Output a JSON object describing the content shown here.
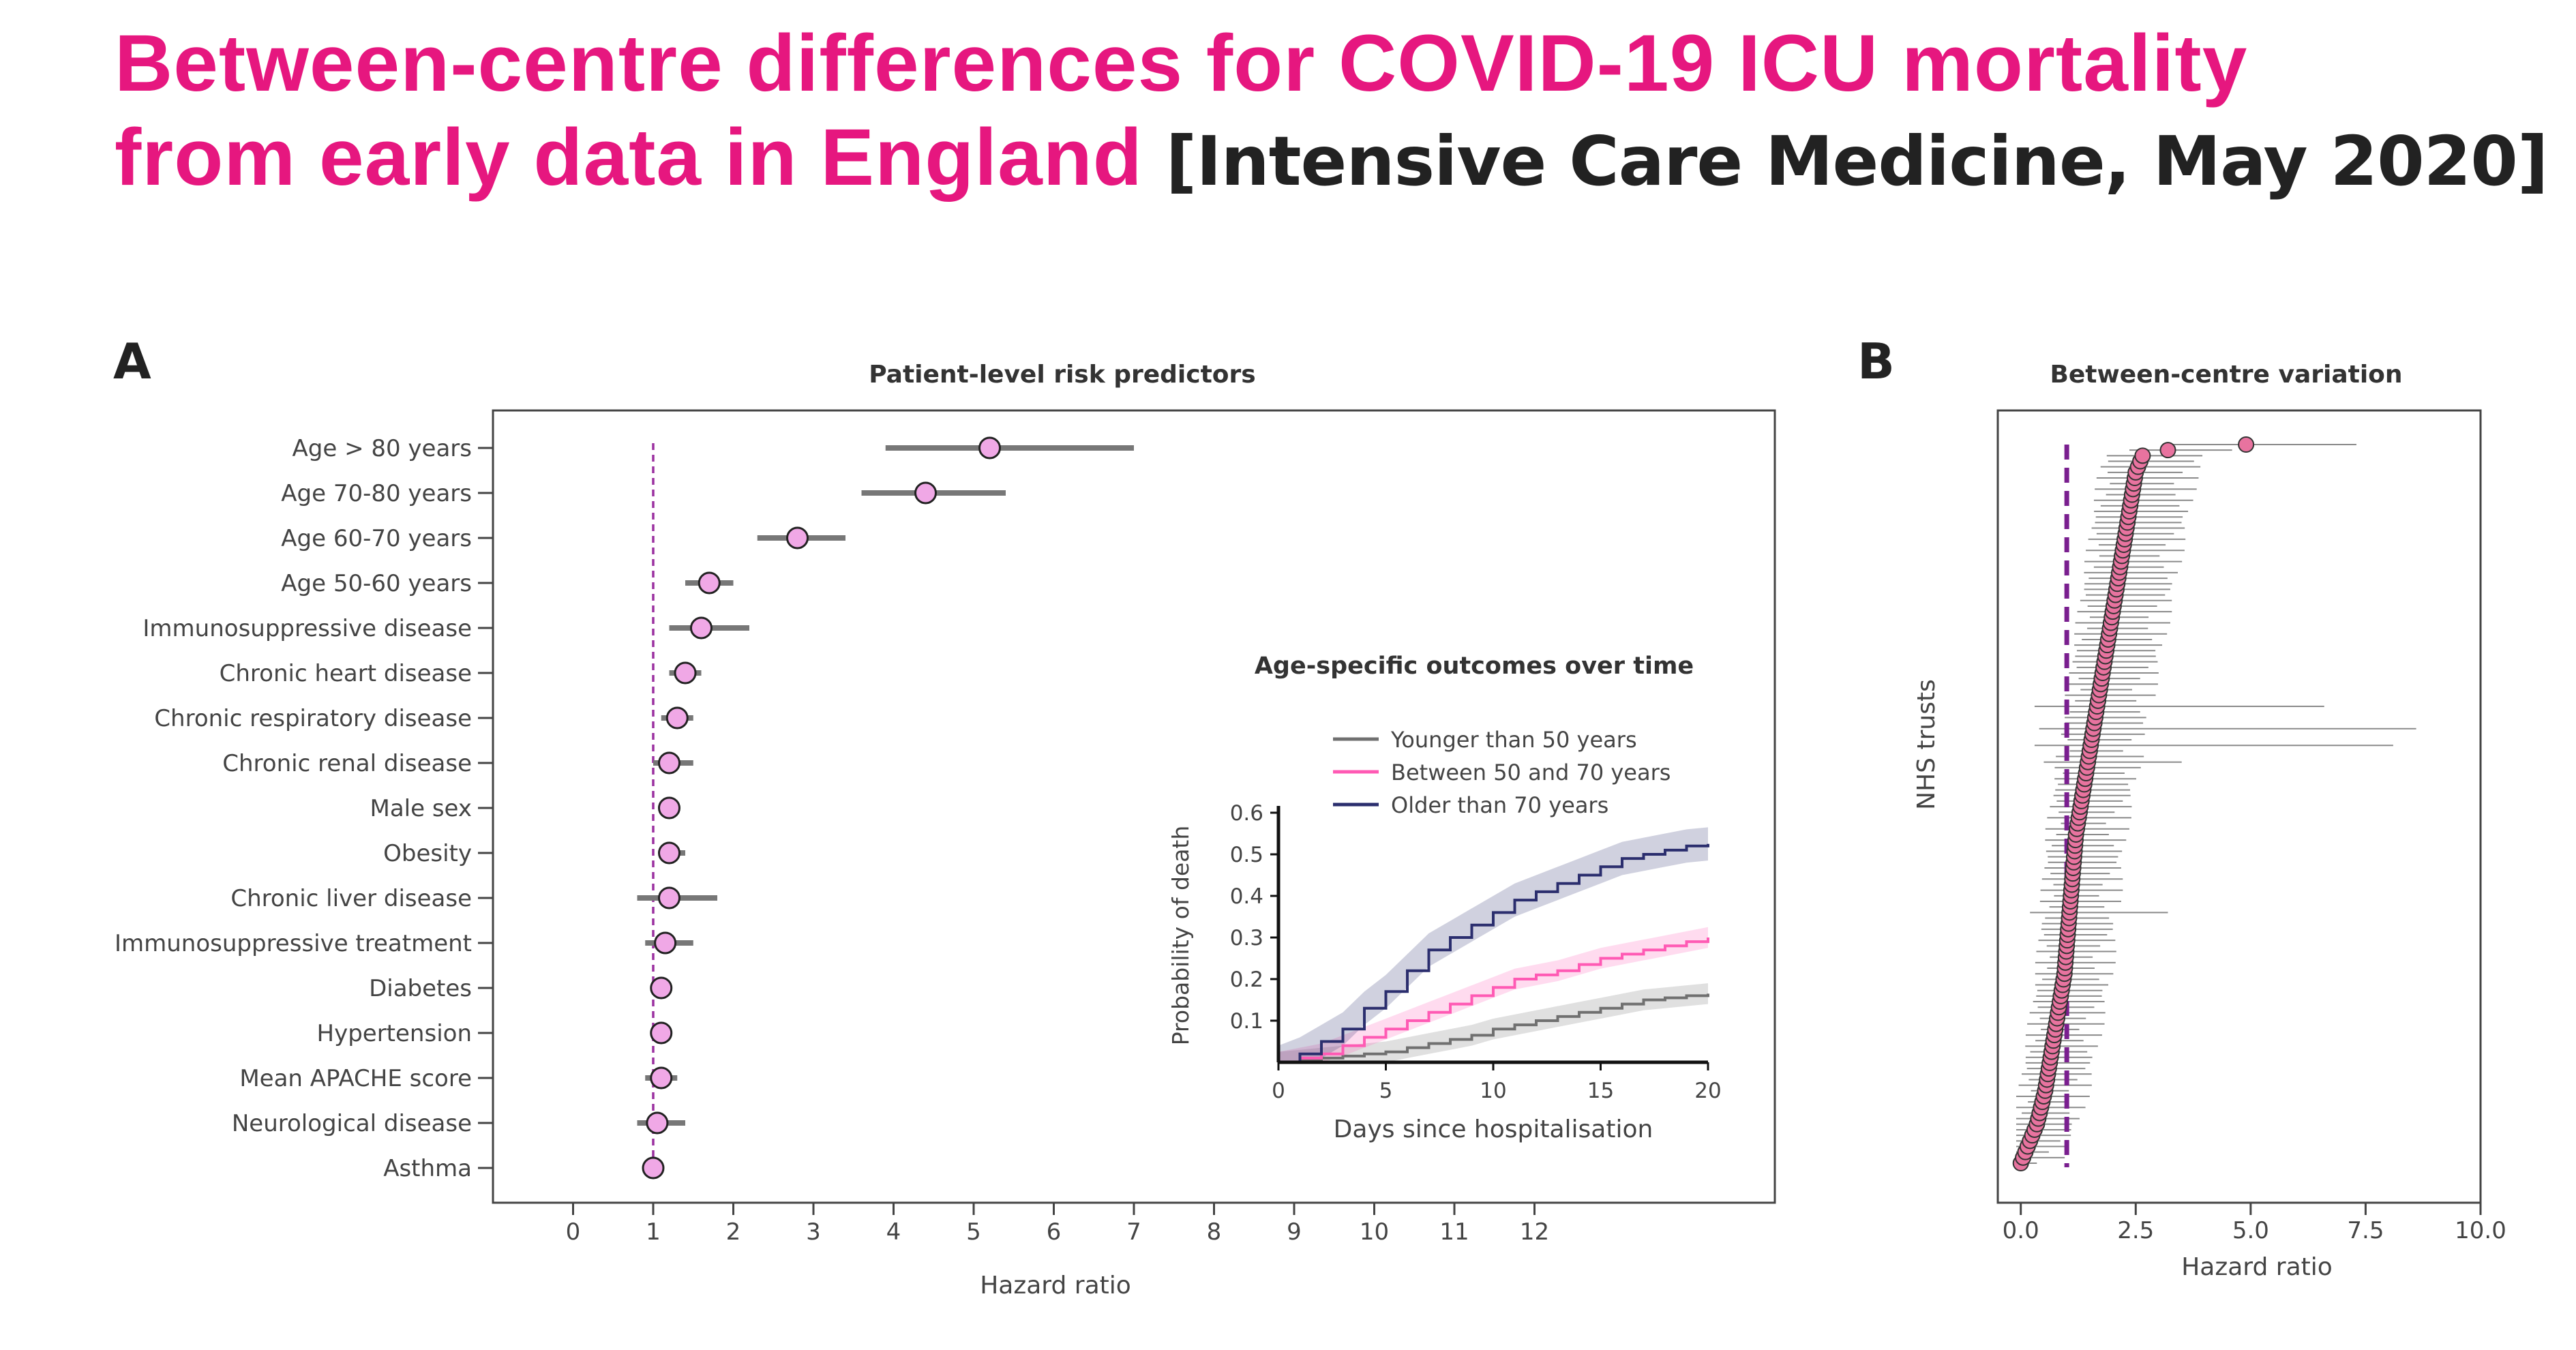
{
  "title": {
    "line1": "Between-centre differences for COVID-19 ICU mortality",
    "line2": "from early data in England",
    "source": "[Intensive Care Medicine, May 2020]"
  },
  "colors": {
    "title": "#e6177f",
    "marker_fill": "#f0a8e6",
    "marker_fill_b": "#e8739f",
    "ci_line": "#777777",
    "ref_line": "#9b30a0",
    "ref_line_b": "#7a1f8f",
    "young": "#707070",
    "mid": "#ff5ab4",
    "old": "#2b2e6e"
  },
  "chart_data": [
    {
      "type": "scatter",
      "panel_label": "A",
      "title": "Patient-level risk predictors",
      "xlabel": "Hazard ratio",
      "xlim": [
        -1,
        15
      ],
      "xticks": [
        0,
        1,
        2,
        3,
        4,
        5,
        6,
        7,
        8,
        9,
        10,
        11,
        12
      ],
      "reference_line": 1,
      "rows": [
        {
          "label": "Age > 80 years",
          "hr": 5.2,
          "lo": 3.9,
          "hi": 7.0
        },
        {
          "label": "Age 70-80 years",
          "hr": 4.4,
          "lo": 3.6,
          "hi": 5.4
        },
        {
          "label": "Age 60-70 years",
          "hr": 2.8,
          "lo": 2.3,
          "hi": 3.4
        },
        {
          "label": "Age 50-60 years",
          "hr": 1.7,
          "lo": 1.4,
          "hi": 2.0
        },
        {
          "label": "Immunosuppressive disease",
          "hr": 1.6,
          "lo": 1.2,
          "hi": 2.2
        },
        {
          "label": "Chronic heart disease",
          "hr": 1.4,
          "lo": 1.2,
          "hi": 1.6
        },
        {
          "label": "Chronic respiratory disease",
          "hr": 1.3,
          "lo": 1.1,
          "hi": 1.5
        },
        {
          "label": "Chronic renal disease",
          "hr": 1.2,
          "lo": 1.0,
          "hi": 1.5
        },
        {
          "label": "Male sex",
          "hr": 1.2,
          "lo": 1.1,
          "hi": 1.3
        },
        {
          "label": "Obesity",
          "hr": 1.2,
          "lo": 1.1,
          "hi": 1.4
        },
        {
          "label": "Chronic liver disease",
          "hr": 1.2,
          "lo": 0.8,
          "hi": 1.8
        },
        {
          "label": "Immunosuppressive treatment",
          "hr": 1.15,
          "lo": 0.9,
          "hi": 1.5
        },
        {
          "label": "Diabetes",
          "hr": 1.1,
          "lo": 1.0,
          "hi": 1.2
        },
        {
          "label": "Hypertension",
          "hr": 1.1,
          "lo": 1.0,
          "hi": 1.2
        },
        {
          "label": "Mean APACHE score",
          "hr": 1.1,
          "lo": 0.9,
          "hi": 1.3
        },
        {
          "label": "Neurological disease",
          "hr": 1.05,
          "lo": 0.8,
          "hi": 1.4
        },
        {
          "label": "Asthma",
          "hr": 1.0,
          "lo": 0.9,
          "hi": 1.1
        }
      ]
    },
    {
      "type": "line",
      "title": "Age-specific outcomes over time",
      "xlabel": "Days since hospitalisation",
      "ylabel": "Probability of death",
      "xlim": [
        0,
        20
      ],
      "ylim": [
        0,
        0.6
      ],
      "xticks": [
        0,
        5,
        10,
        15,
        20
      ],
      "yticks": [
        0.1,
        0.2,
        0.3,
        0.4,
        0.5,
        0.6
      ],
      "legend_position": "top-left",
      "x": [
        0,
        1,
        2,
        3,
        4,
        5,
        6,
        7,
        8,
        9,
        10,
        11,
        12,
        13,
        14,
        15,
        16,
        17,
        18,
        19,
        20
      ],
      "series": [
        {
          "name": "Younger than 50 years",
          "values": [
            0,
            0.005,
            0.01,
            0.015,
            0.02,
            0.025,
            0.035,
            0.045,
            0.055,
            0.065,
            0.08,
            0.09,
            0.1,
            0.11,
            0.12,
            0.13,
            0.14,
            0.15,
            0.155,
            0.16,
            0.165
          ],
          "band": 0.025
        },
        {
          "name": "Between 50 and 70 years",
          "values": [
            0,
            0.01,
            0.02,
            0.04,
            0.06,
            0.08,
            0.1,
            0.12,
            0.14,
            0.16,
            0.18,
            0.2,
            0.21,
            0.22,
            0.235,
            0.25,
            0.26,
            0.27,
            0.28,
            0.29,
            0.3
          ],
          "band": 0.025
        },
        {
          "name": "Older than 70 years",
          "values": [
            0,
            0.02,
            0.05,
            0.08,
            0.13,
            0.17,
            0.22,
            0.27,
            0.3,
            0.33,
            0.36,
            0.39,
            0.41,
            0.43,
            0.45,
            0.47,
            0.49,
            0.5,
            0.51,
            0.52,
            0.525
          ],
          "band": 0.04
        }
      ]
    },
    {
      "type": "scatter",
      "panel_label": "B",
      "title": "Between-centre variation",
      "xlabel": "Hazard ratio",
      "ylabel": "NHS trusts",
      "xlim": [
        -0.5,
        10.0
      ],
      "xticks": [
        0.0,
        2.5,
        5.0,
        7.5,
        10.0
      ],
      "x_ticklabels": [
        "0.0",
        "2.5",
        "5.0",
        "7.5",
        "10.0"
      ],
      "reference_line": 1,
      "n_trusts": 130,
      "series": [
        {
          "hr": [
            0.0,
            0.05,
            0.1,
            0.15,
            0.2,
            0.25,
            0.3,
            0.35,
            0.38,
            0.41,
            0.44,
            0.47,
            0.5,
            0.53,
            0.55,
            0.57,
            0.59,
            0.61,
            0.63,
            0.65,
            0.67,
            0.69,
            0.71,
            0.73,
            0.75,
            0.77,
            0.79,
            0.81,
            0.83,
            0.85,
            0.87,
            0.89,
            0.91,
            0.93,
            0.95,
            0.96,
            0.97,
            0.98,
            0.99,
            1.0,
            1.01,
            1.02,
            1.03,
            1.04,
            1.05,
            1.06,
            1.07,
            1.08,
            1.09,
            1.1,
            1.11,
            1.12,
            1.13,
            1.14,
            1.15,
            1.16,
            1.17,
            1.18,
            1.19,
            1.2,
            1.22,
            1.24,
            1.26,
            1.28,
            1.3,
            1.32,
            1.34,
            1.36,
            1.38,
            1.4,
            1.42,
            1.44,
            1.46,
            1.48,
            1.5,
            1.52,
            1.54,
            1.56,
            1.58,
            1.6,
            1.62,
            1.64,
            1.66,
            1.68,
            1.7,
            1.72,
            1.74,
            1.76,
            1.78,
            1.8,
            1.82,
            1.84,
            1.86,
            1.88,
            1.9,
            1.92,
            1.94,
            1.96,
            1.98,
            2.0,
            2.02,
            2.04,
            2.06,
            2.08,
            2.1,
            2.12,
            2.14,
            2.16,
            2.18,
            2.2,
            2.22,
            2.24,
            2.26,
            2.28,
            2.3,
            2.32,
            2.34,
            2.36,
            2.38,
            2.4,
            2.42,
            2.44,
            2.46,
            2.48,
            2.5,
            2.55,
            2.6,
            2.65,
            3.2,
            4.9
          ],
          "wide_ci": [
            {
              "i": 45,
              "lo": 0.2,
              "hi": 3.2
            },
            {
              "i": 72,
              "lo": 0.5,
              "hi": 3.5
            },
            {
              "i": 75,
              "lo": 0.3,
              "hi": 8.1
            },
            {
              "i": 78,
              "lo": 0.4,
              "hi": 8.6
            },
            {
              "i": 82,
              "lo": 0.3,
              "hi": 6.6
            },
            {
              "i": 129,
              "lo": 3.3,
              "hi": 7.3
            }
          ]
        }
      ]
    }
  ]
}
